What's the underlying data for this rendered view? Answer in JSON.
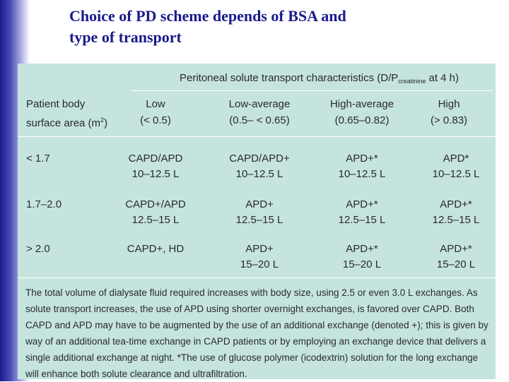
{
  "slide": {
    "title_line1": "Choice of PD scheme depends of BSA and",
    "title_line2": "type of transport"
  },
  "table": {
    "transport_title_main": "Peritoneal solute transport characteristics (D/P",
    "transport_title_sub": "creatinine",
    "transport_title_end": " at 4 h)",
    "bsa_header_line1": "Patient body",
    "bsa_header_line2_text": "surface area (m",
    "bsa_header_line2_sup": "2",
    "bsa_header_line2_end": ")",
    "columns": [
      {
        "label": "Low",
        "range": "(< 0.5)"
      },
      {
        "label": "Low-average",
        "range": "(0.5– < 0.65)"
      },
      {
        "label": "High-average",
        "range": "(0.65–0.82)"
      },
      {
        "label": "High",
        "range": "(> 0.83)"
      }
    ],
    "rows": [
      {
        "bsa": "< 1.7",
        "cells": [
          {
            "scheme": "CAPD/APD",
            "volume": "10–12.5 L"
          },
          {
            "scheme": "CAPD/APD+",
            "volume": "10–12.5 L"
          },
          {
            "scheme": "APD+*",
            "volume": "10–12.5 L"
          },
          {
            "scheme": "APD*",
            "volume": "10–12.5 L"
          }
        ]
      },
      {
        "bsa": "1.7–2.0",
        "cells": [
          {
            "scheme": "CAPD+/APD",
            "volume": "12.5–15 L"
          },
          {
            "scheme": "APD+",
            "volume": "12.5–15 L"
          },
          {
            "scheme": "APD+*",
            "volume": "12.5–15 L"
          },
          {
            "scheme": "APD+*",
            "volume": "12.5–15 L"
          }
        ]
      },
      {
        "bsa": "> 2.0",
        "cells": [
          {
            "scheme": "CAPD+, HD",
            "volume": ""
          },
          {
            "scheme": "APD+",
            "volume": "15–20 L"
          },
          {
            "scheme": "APD+*",
            "volume": "15–20 L"
          },
          {
            "scheme": "APD+*",
            "volume": "15–20 L"
          }
        ]
      }
    ],
    "footnote": "The total volume of dialysate fluid required increases with body size, using 2.5 or even 3.0 L exchanges. As solute transport increases, the use of APD using shorter overnight exchanges, is favored over CAPD. Both CAPD and APD may have to be augmented by the use of an additional exchange (denoted +); this is given by way of an additional tea-time exchange in CAPD patients or by employing an exchange device that delivers a single additional exchange at night. *The use of glucose polymer (icodextrin) solution for the long exchange will enhance both solute clearance and ultrafiltration."
  }
}
